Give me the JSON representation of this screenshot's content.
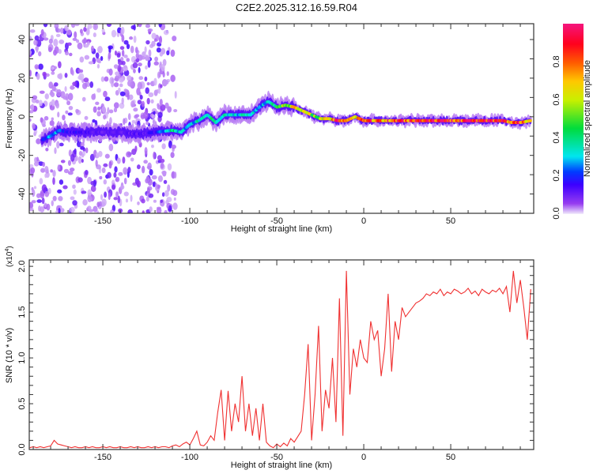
{
  "chart_data": [
    {
      "type": "heatmap",
      "title": "C2E2.2025.312.16.59.R04",
      "xlabel": "Height of straight line (km)",
      "ylabel": "Frequency (Hz)",
      "xlim": [
        -192.3,
        97.7
      ],
      "ylim": [
        -50,
        48.2
      ],
      "xticks": [
        -150,
        -100,
        -50,
        0,
        50
      ],
      "yticks": [
        -40,
        -20,
        0,
        20,
        40
      ],
      "grid": false,
      "colorbar": {
        "label": "Normalized spectral amplitude",
        "range": [
          0,
          1
        ],
        "ticks": [
          "0.0",
          "0.2",
          "0.4",
          "0.6",
          "0.8"
        ],
        "colormap": "rainbow (purple-blue-cyan-green-yellow-red-magenta)"
      },
      "noise_region_km": [
        -192,
        -110
      ],
      "ridge": [
        {
          "x": -185,
          "f": -12,
          "a": 0.15
        },
        {
          "x": -180,
          "f": -10,
          "a": 0.3
        },
        {
          "x": -175,
          "f": -7,
          "a": 0.25
        },
        {
          "x": -170,
          "f": -8,
          "a": 0.15
        },
        {
          "x": -160,
          "f": -8,
          "a": 0.15
        },
        {
          "x": -150,
          "f": -8,
          "a": 0.1
        },
        {
          "x": -140,
          "f": -8,
          "a": 0.12
        },
        {
          "x": -130,
          "f": -9,
          "a": 0.12
        },
        {
          "x": -120,
          "f": -8,
          "a": 0.15
        },
        {
          "x": -110,
          "f": -7,
          "a": 0.4
        },
        {
          "x": -105,
          "f": -8,
          "a": 0.3
        },
        {
          "x": -100,
          "f": -4,
          "a": 0.3
        },
        {
          "x": -95,
          "f": -2,
          "a": 0.35
        },
        {
          "x": -90,
          "f": 1,
          "a": 0.4
        },
        {
          "x": -85,
          "f": -3,
          "a": 0.4
        },
        {
          "x": -80,
          "f": 1,
          "a": 0.35
        },
        {
          "x": -75,
          "f": 1,
          "a": 0.3
        },
        {
          "x": -70,
          "f": 1,
          "a": 0.35
        },
        {
          "x": -65,
          "f": 1,
          "a": 0.35
        },
        {
          "x": -60,
          "f": 5,
          "a": 0.3
        },
        {
          "x": -55,
          "f": 8,
          "a": 0.3
        },
        {
          "x": -50,
          "f": 5,
          "a": 0.5
        },
        {
          "x": -45,
          "f": 6,
          "a": 0.6
        },
        {
          "x": -40,
          "f": 5,
          "a": 0.7
        },
        {
          "x": -35,
          "f": 3,
          "a": 0.6
        },
        {
          "x": -30,
          "f": 1,
          "a": 0.6
        },
        {
          "x": -25,
          "f": -1,
          "a": 0.6
        },
        {
          "x": -20,
          "f": -1,
          "a": 0.65
        },
        {
          "x": -15,
          "f": -2,
          "a": 0.9
        },
        {
          "x": -10,
          "f": -2,
          "a": 0.9
        },
        {
          "x": -5,
          "f": 0,
          "a": 0.7
        },
        {
          "x": 0,
          "f": -2,
          "a": 0.95
        },
        {
          "x": 5,
          "f": -2,
          "a": 0.85
        },
        {
          "x": 20,
          "f": -2,
          "a": 0.9
        },
        {
          "x": 40,
          "f": -2,
          "a": 1.0
        },
        {
          "x": 60,
          "f": -2,
          "a": 0.98
        },
        {
          "x": 80,
          "f": -2,
          "a": 0.9
        },
        {
          "x": 85,
          "f": -3,
          "a": 0.7
        },
        {
          "x": 90,
          "f": -3,
          "a": 0.95
        },
        {
          "x": 96,
          "f": -2,
          "a": 0.8
        }
      ]
    },
    {
      "type": "line",
      "xlabel": "Height of straight line (km)",
      "ylabel": "SNR (10 * v/v)",
      "scale_label": "(x10",
      "scale_exp": "4",
      "xlim": [
        -192.3,
        97.7
      ],
      "ylim": [
        0,
        2.07
      ],
      "xticks": [
        -150,
        -100,
        -50,
        0,
        50
      ],
      "yticks": [
        "0.0",
        "0.5",
        "1.0",
        "1.5",
        "2.0"
      ],
      "grid": false,
      "series": [
        {
          "name": "SNR",
          "color": "#f03030",
          "x_start": -192,
          "x_step": 2,
          "values": [
            0.02,
            0.03,
            0.02,
            0.03,
            0.02,
            0.03,
            0.04,
            0.1,
            0.06,
            0.05,
            0.04,
            0.03,
            0.02,
            0.03,
            0.02,
            0.02,
            0.03,
            0.02,
            0.03,
            0.02,
            0.02,
            0.03,
            0.02,
            0.03,
            0.02,
            0.02,
            0.03,
            0.02,
            0.02,
            0.03,
            0.02,
            0.03,
            0.02,
            0.02,
            0.03,
            0.02,
            0.03,
            0.02,
            0.03,
            0.03,
            0.02,
            0.04,
            0.05,
            0.03,
            0.06,
            0.08,
            0.05,
            0.12,
            0.2,
            0.05,
            0.04,
            0.08,
            0.15,
            0.1,
            0.4,
            0.65,
            0.1,
            0.64,
            0.2,
            0.5,
            0.3,
            0.8,
            0.2,
            0.5,
            0.15,
            0.45,
            0.1,
            0.5,
            0.08,
            0.04,
            0.02,
            0.06,
            0.03,
            0.07,
            0.04,
            0.12,
            0.08,
            0.14,
            0.2,
            0.6,
            1.15,
            0.1,
            0.6,
            1.35,
            0.2,
            0.65,
            0.45,
            1.0,
            0.3,
            1.65,
            0.15,
            1.95,
            0.6,
            1.1,
            0.9,
            1.2,
            1.0,
            0.95,
            1.4,
            1.2,
            1.3,
            0.8,
            1.1,
            1.7,
            0.85,
            1.4,
            1.2,
            1.55,
            1.45,
            1.5,
            1.55,
            1.6,
            1.62,
            1.65,
            1.7,
            1.68,
            1.72,
            1.7,
            1.75,
            1.68,
            1.72,
            1.7,
            1.75,
            1.73,
            1.7,
            1.72,
            1.76,
            1.7,
            1.73,
            1.68,
            1.75,
            1.72,
            1.7,
            1.74,
            1.72,
            1.76,
            1.7,
            1.78,
            1.5,
            1.95,
            1.6,
            1.85,
            1.55,
            1.2,
            1.75
          ]
        }
      ]
    }
  ]
}
